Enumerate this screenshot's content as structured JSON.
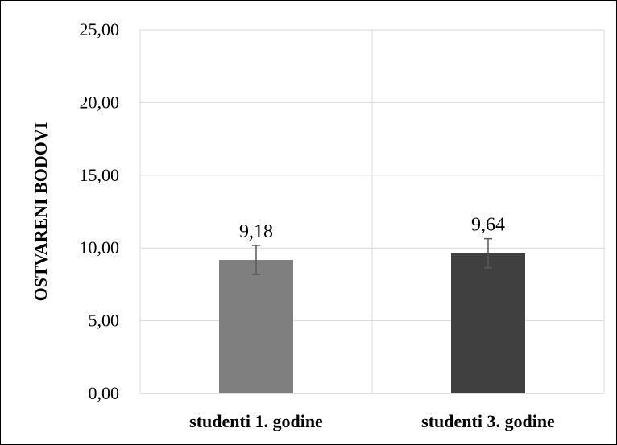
{
  "chart_data": {
    "type": "bar",
    "categories": [
      "studenti 1. godine",
      "studenti 3. godine"
    ],
    "values": [
      9.18,
      9.64
    ],
    "data_labels": [
      "9,18",
      "9,64"
    ],
    "error_bars": {
      "lower": [
        8.18,
        8.64
      ],
      "upper": [
        10.18,
        10.64
      ]
    },
    "bar_colors": [
      "#7f7f7f",
      "#404040"
    ],
    "ylabel": "OSTVARENI BODOVI",
    "xlabel": "",
    "title": "",
    "ylim": [
      0,
      25
    ],
    "yticks": [
      0,
      5,
      10,
      15,
      20,
      25
    ],
    "ytick_labels": [
      "0,00",
      "5,00",
      "10,00",
      "15,00",
      "20,00",
      "25,00"
    ],
    "grid": "on",
    "legend": "none",
    "colors": {
      "grid": "#d9d9d9",
      "error_bar": "#595959",
      "axis": "#bfbfbf"
    }
  }
}
